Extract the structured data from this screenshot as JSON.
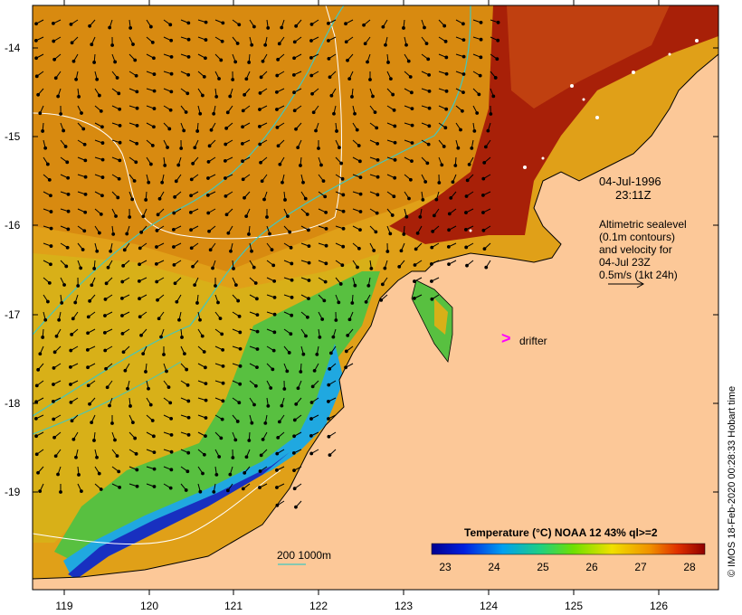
{
  "map": {
    "lat_ticks": [
      "-14",
      "-15",
      "-16",
      "-17",
      "-18",
      "-19"
    ],
    "lon_ticks": [
      "119",
      "120",
      "121",
      "122",
      "123",
      "124",
      "125",
      "126"
    ],
    "colors": {
      "land": "#fcc898",
      "warm": "#e08a10",
      "hot": "#a81800",
      "mid": "#d8b820",
      "cool": "#48c038",
      "cold": "#1828b8",
      "contour_cyan": "#40c8c0",
      "contour_white": "#ffffff",
      "drifter": "#ff00ff"
    }
  },
  "annotations": {
    "date": "04-Jul-1996",
    "time": "23:11Z",
    "legend_line1": "Altimetric sealevel",
    "legend_line2": "(0.1m contours)",
    "legend_line3": "and velocity for",
    "legend_line4": "04-Jul 23Z",
    "legend_line5": "0.5m/s (1kt 24h)",
    "drifter_symbol": ">",
    "drifter_label": "drifter",
    "depth_label": "200  1000m"
  },
  "colorbar": {
    "title": "Temperature (°C) NOAA 12 43% ql>=2",
    "ticks": [
      "23",
      "24",
      "25",
      "26",
      "27",
      "28"
    ],
    "stops": [
      "#000090",
      "#0020e0",
      "#00a0f0",
      "#20d080",
      "#70e000",
      "#f0e000",
      "#f09000",
      "#e03000",
      "#900000"
    ]
  },
  "credit": "© IMOS 18-Feb-2020 00:28:33 Hobart time"
}
